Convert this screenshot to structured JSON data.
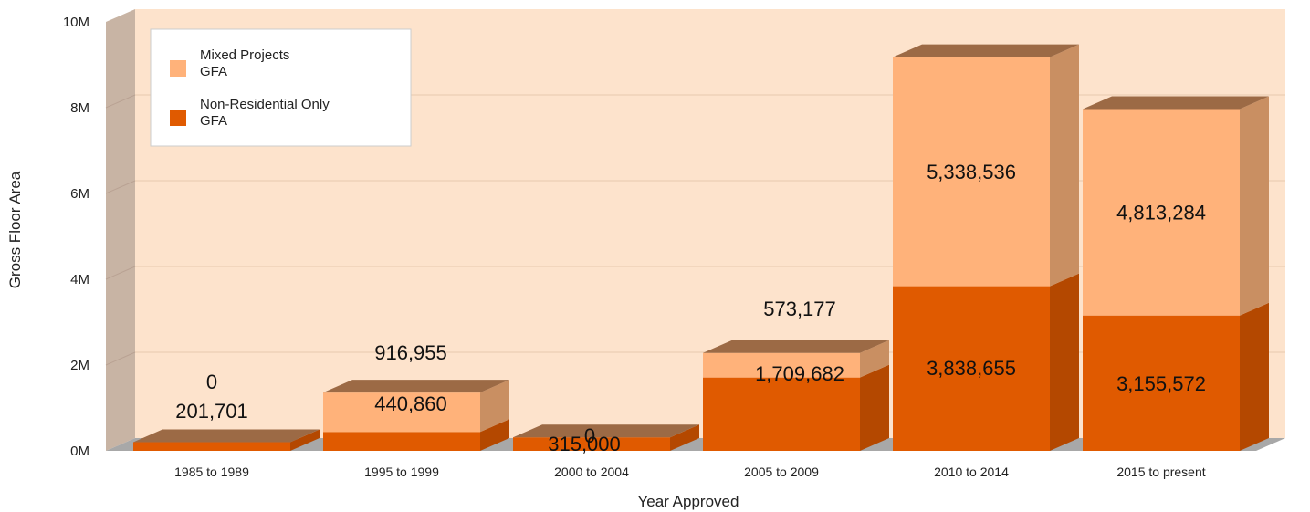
{
  "chart_data": {
    "type": "bar",
    "stacked": true,
    "three_d": true,
    "categories": [
      "1985 to 1989",
      "1995 to 1999",
      "2000 to 2004",
      "2005 to 2009",
      "2010 to 2014",
      "2015 to present"
    ],
    "series": [
      {
        "name": "Non-Residential Only GFA",
        "values": [
          201701,
          440860,
          315000,
          1709682,
          3838655,
          3155572
        ],
        "color": "#E05A00"
      },
      {
        "name": "Mixed Projects GFA",
        "values": [
          0,
          916955,
          0,
          573177,
          5338536,
          4813284
        ],
        "color": "#FFB27A"
      }
    ],
    "data_labels": {
      "Non-Residential Only GFA": [
        "201,701",
        "440,860",
        "315,000",
        "1,709,682",
        "3,838,655",
        "3,155,572"
      ],
      "Mixed Projects GFA": [
        "0",
        "916,955",
        "0",
        "573,177",
        "5,338,536",
        "4,813,284"
      ]
    },
    "y_ticks": [
      "0M",
      "2M",
      "4M",
      "6M",
      "8M",
      "10M"
    ],
    "ylim": [
      0,
      10000000
    ],
    "xlabel": "Year Approved",
    "ylabel": "Gross Floor Area",
    "grid": true,
    "legend_position": "top-left",
    "legend": [
      {
        "series": "Mixed Projects GFA",
        "lines": [
          "Mixed Projects",
          "GFA"
        ],
        "color": "#FFB27A"
      },
      {
        "series": "Non-Residential Only GFA",
        "lines": [
          "Non-Residential Only",
          "GFA"
        ],
        "color": "#E05A00"
      }
    ],
    "colors": {
      "plot_background": "#FDE3CC",
      "wall_side": "#C8B4A4",
      "floor": "#A8A8A8",
      "bar_top": "#9C6A45",
      "mixed_side": "#C98F62",
      "nonres_side": "#B44800"
    }
  }
}
